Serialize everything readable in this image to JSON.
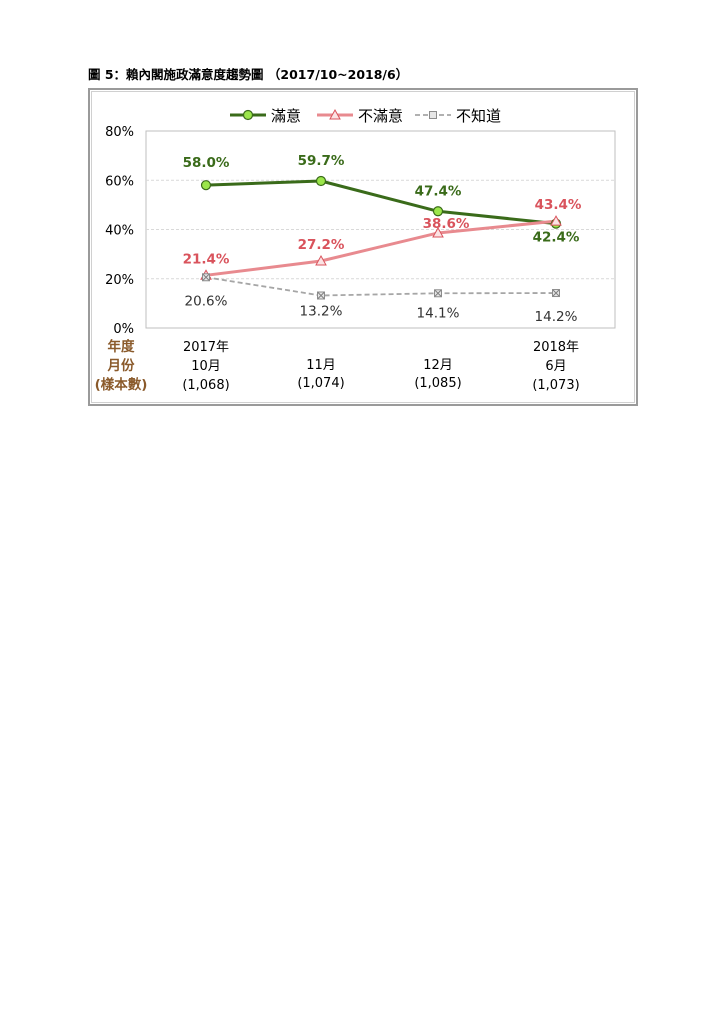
{
  "figure_title": "圖 5：賴內閣施政滿意度趨勢圖 （2017/10~2018/6）",
  "row_labels": [
    "年度",
    "月份",
    "(樣本數)"
  ],
  "colors": {
    "satisfied": "#3a6b1a",
    "satisfied_marker": "#9be64a",
    "dissatisfied": "#e88a8f",
    "dissatisfied_label": "#d9535c",
    "unknown": "#a6a6a6",
    "unknown_label": "#333333",
    "row_label": "#8a5a2b"
  },
  "chart_data": {
    "type": "line",
    "categories": [
      [
        "2017年",
        "10月",
        "(1,068)"
      ],
      [
        "",
        "11月",
        "(1,074)"
      ],
      [
        "",
        "12月",
        "(1,085)"
      ],
      [
        "2018年",
        "6月",
        "(1,073)"
      ]
    ],
    "series": [
      {
        "name": "滿意",
        "values": [
          58.0,
          59.7,
          47.4,
          42.4
        ],
        "labels": [
          "58.0%",
          "59.7%",
          "47.4%",
          "42.4%"
        ],
        "marker": "circle"
      },
      {
        "name": "不滿意",
        "values": [
          21.4,
          27.2,
          38.6,
          43.4
        ],
        "labels": [
          "21.4%",
          "27.2%",
          "38.6%",
          "43.4%"
        ],
        "marker": "triangle"
      },
      {
        "name": "不知道",
        "values": [
          20.6,
          13.2,
          14.1,
          14.2
        ],
        "labels": [
          "20.6%",
          "13.2%",
          "14.1%",
          "14.2%"
        ],
        "marker": "x-square",
        "dashed": true
      }
    ],
    "y_ticks": [
      "0%",
      "20%",
      "40%",
      "60%",
      "80%"
    ],
    "ylim": [
      0,
      80
    ],
    "grid": true,
    "legend": "top"
  }
}
